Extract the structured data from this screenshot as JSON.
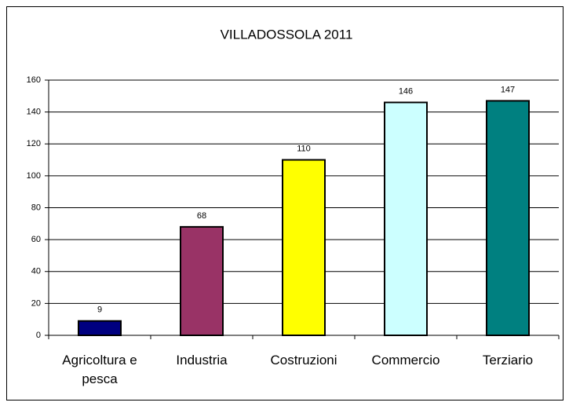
{
  "chart_data": {
    "type": "bar",
    "title": "VILLADOSSOLA 2011",
    "categories": [
      "Agricoltura e pesca",
      "Industria",
      "Costruzioni",
      "Commercio",
      "Terziario"
    ],
    "values": [
      9,
      68,
      110,
      146,
      147
    ],
    "colors": [
      "#000080",
      "#993366",
      "#ffff00",
      "#ccffff",
      "#008080"
    ],
    "ylim": [
      0,
      160
    ],
    "yticks": [
      0,
      20,
      40,
      60,
      80,
      100,
      120,
      140,
      160
    ],
    "grid": true,
    "data_labels": true
  }
}
